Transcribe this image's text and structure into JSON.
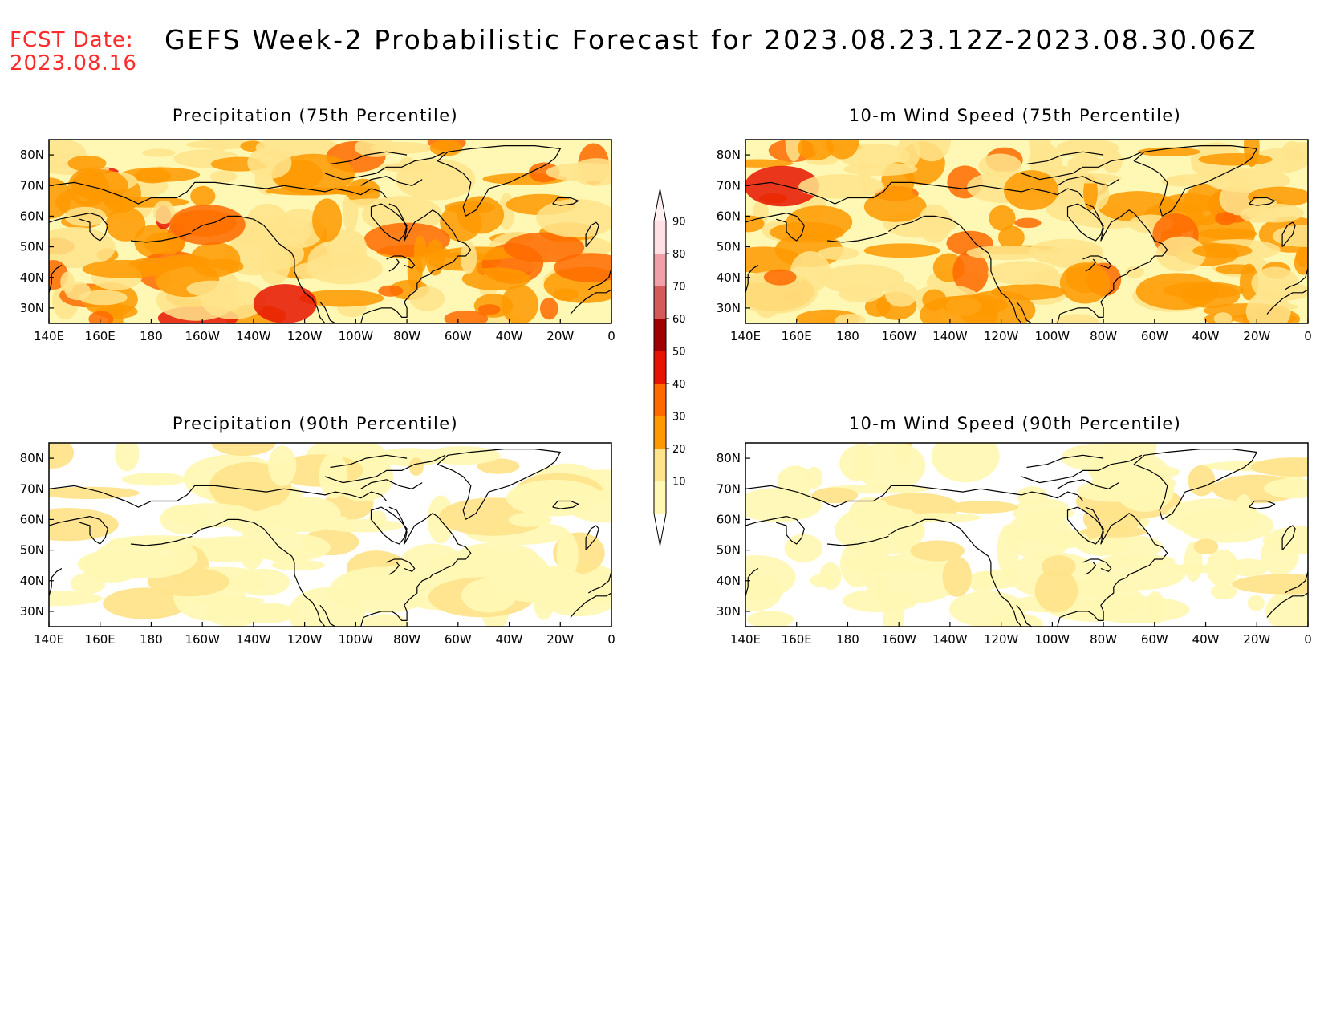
{
  "forecast_date": {
    "label": "FCST Date:",
    "value": "2023.08.16"
  },
  "title": "GEFS Week-2 Probabilistic Forecast for 2023.08.23.12Z-2023.08.30.06Z",
  "axes": {
    "x_ticks": [
      "140E",
      "160E",
      "180",
      "160W",
      "140W",
      "120W",
      "100W",
      "80W",
      "60W",
      "40W",
      "20W",
      "0"
    ],
    "y_ticks": [
      "80N",
      "70N",
      "60N",
      "50N",
      "40N",
      "30N"
    ]
  },
  "panels": [
    {
      "title": "Precipitation (75th Percentile)",
      "intensity": "high"
    },
    {
      "title": "10-m Wind Speed (75th Percentile)",
      "intensity": "high"
    },
    {
      "title": "Precipitation (90th Percentile)",
      "intensity": "low"
    },
    {
      "title": "10-m Wind Speed (90th Percentile)",
      "intensity": "low"
    }
  ],
  "colorbar": {
    "levels": [
      "10",
      "20",
      "30",
      "40",
      "50",
      "60",
      "70",
      "80",
      "90"
    ],
    "colors": [
      "#fff8b4",
      "#ffe48c",
      "#ff9900",
      "#ff6a00",
      "#e61400",
      "#a00000",
      "#d45a5a",
      "#f0a0a8",
      "#ffe0e4"
    ]
  }
}
